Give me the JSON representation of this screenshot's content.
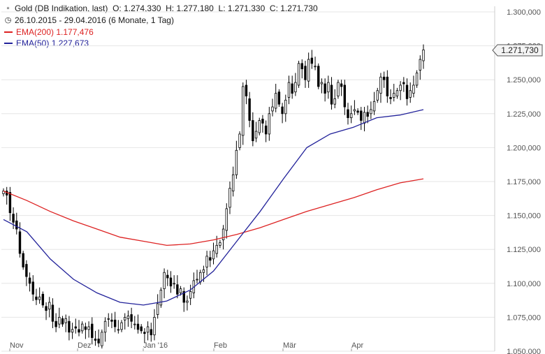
{
  "header": {
    "instrument": "Gold (DB Indikation, last)",
    "ohlc": {
      "o": "O: 1.274,330",
      "h": "H: 1.277,180",
      "l": "L: 1.271,330",
      "c": "C: 1.271,730"
    },
    "period": "26.10.2015 - 29.04.2016 (6 Monate, 1 Tag)",
    "icons": {
      "chart": "candlestick-chart-icon",
      "period": "clock-icon"
    }
  },
  "legend": [
    {
      "label": "EMA(200)",
      "value": "1.177,476",
      "color": "#dd2222"
    },
    {
      "label": "EMA(50)",
      "value": "1.227,673",
      "color": "#22229a"
    }
  ],
  "colors": {
    "candle": "#000000",
    "ema200": "#dd2222",
    "ema50": "#22229a",
    "grid": "#e6e6e6"
  },
  "chart_data": {
    "type": "candlestick",
    "y_ticks": [
      "1.050,000",
      "1.075,000",
      "1.100,000",
      "1.125,000",
      "1.150,000",
      "1.175,000",
      "1.200,000",
      "1.225,000",
      "1.250,000",
      "1.275,000",
      "1.300,000"
    ],
    "ylim": [
      1050,
      1300
    ],
    "x_ticks": [
      "Nov",
      "Dez",
      "Jan '16",
      "Feb",
      "Mär",
      "Apr"
    ],
    "last_value_label": "1.271,730",
    "last_value": 1271.73,
    "closes": [
      1168,
      1165,
      1152,
      1145,
      1140,
      1122,
      1112,
      1105,
      1100,
      1092,
      1088,
      1090,
      1084,
      1080,
      1086,
      1072,
      1068,
      1075,
      1070,
      1074,
      1064,
      1066,
      1067,
      1064,
      1070,
      1066,
      1068,
      1060,
      1058,
      1056,
      1064,
      1072,
      1074,
      1072,
      1068,
      1066,
      1071,
      1075,
      1076,
      1072,
      1070,
      1066,
      1065,
      1063,
      1068,
      1062,
      1075,
      1085,
      1095,
      1108,
      1104,
      1098,
      1100,
      1092,
      1096,
      1086,
      1087,
      1094,
      1102,
      1103,
      1108,
      1110,
      1120,
      1117,
      1124,
      1128,
      1130,
      1140,
      1155,
      1170,
      1180,
      1198,
      1210,
      1245,
      1238,
      1220,
      1205,
      1212,
      1220,
      1218,
      1210,
      1225,
      1230,
      1240,
      1232,
      1225,
      1235,
      1248,
      1240,
      1248,
      1262,
      1258,
      1250,
      1265,
      1262,
      1260,
      1245,
      1248,
      1240,
      1248,
      1232,
      1236,
      1248,
      1245,
      1230,
      1222,
      1225,
      1228,
      1226,
      1220,
      1226,
      1223,
      1228,
      1234,
      1242,
      1252,
      1250,
      1238,
      1236,
      1240,
      1242,
      1246,
      1247,
      1236,
      1242,
      1246,
      1255,
      1265,
      1272
    ],
    "ema200": [
      1168,
      1161,
      1153,
      1146,
      1140,
      1134,
      1131,
      1128,
      1129,
      1132,
      1136,
      1141,
      1147,
      1153,
      1158,
      1163,
      1169,
      1174,
      1177
    ],
    "ema50": [
      1147,
      1138,
      1118,
      1103,
      1093,
      1086,
      1084,
      1087,
      1095,
      1109,
      1131,
      1153,
      1177,
      1200,
      1210,
      1215,
      1222,
      1224,
      1228
    ]
  }
}
